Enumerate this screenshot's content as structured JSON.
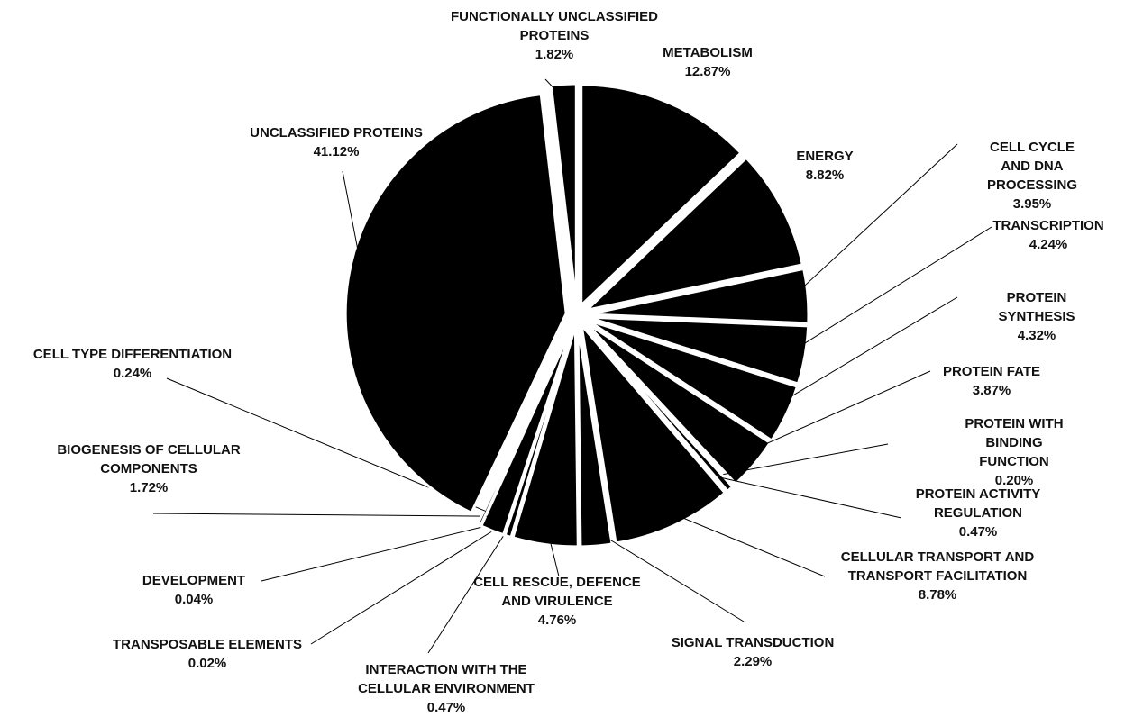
{
  "chart_data": {
    "type": "pie",
    "categories": [
      "METABOLISM",
      "ENERGY",
      "CELL CYCLE AND DNA\nPROCESSING",
      "TRANSCRIPTION",
      "PROTEIN SYNTHESIS",
      "PROTEIN FATE",
      "PROTEIN WITH BINDING\nFUNCTION",
      "PROTEIN ACTIVITY\nREGULATION",
      "CELLULAR TRANSPORT AND\nTRANSPORT FACILITATION",
      "SIGNAL TRANSDUCTION",
      "CELL RESCUE,  DEFENCE\nAND VIRULENCE",
      "INTERACTION WITH THE\nCELLULAR ENVIRONMENT",
      "TRANSPOSABLE ELEMENTS",
      "DEVELOPMENT",
      "BIOGENESIS OF CELLULAR\nCOMPONENTS",
      "CELL TYPE DIFFERENTIATION",
      "UNCLASSIFIED PROTEINS",
      "FUNCTIONALLY  UNCLASSIFIED\nPROTEINS"
    ],
    "values": [
      12.87,
      8.82,
      3.95,
      4.24,
      4.32,
      3.87,
      0.2,
      0.47,
      8.78,
      2.29,
      4.76,
      0.47,
      0.02,
      0.04,
      1.72,
      0.24,
      41.12,
      1.82
    ],
    "value_labels": [
      "12.87%",
      "8.82%",
      "3.95%",
      "4.24%",
      "4.32%",
      "3.87%",
      "0.20%",
      "0.47%",
      "8.78%",
      "2.29%",
      "4.76%",
      "0.47%",
      "0.02%",
      "0.04%",
      "1.72%",
      "0.24%",
      "41.12%",
      "1.82%"
    ],
    "color": "#000000"
  }
}
